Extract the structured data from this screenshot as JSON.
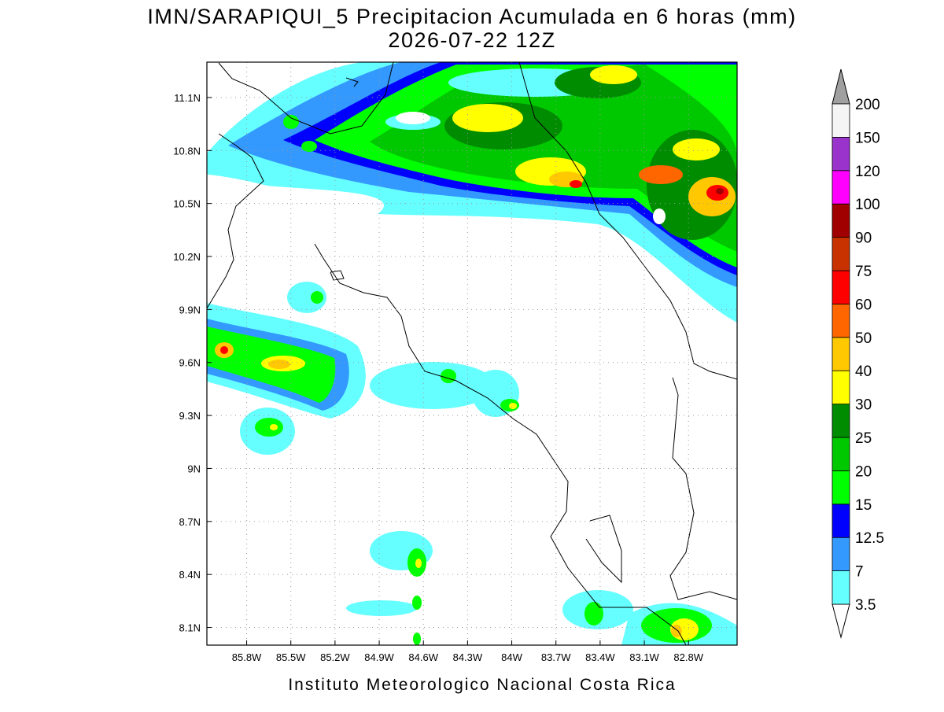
{
  "header": {
    "title": "IMN/SARAPIQUI_5 Precipitacion Acumulada en 6 horas (mm)",
    "subtitle": "2026-07-22 12Z"
  },
  "map": {
    "xlim": [
      -86.07,
      -82.47
    ],
    "ylim": [
      8.0,
      11.3
    ],
    "xticks": [
      {
        "value": -85.8,
        "label": "85.8W"
      },
      {
        "value": -85.5,
        "label": "85.5W"
      },
      {
        "value": -85.2,
        "label": "85.2W"
      },
      {
        "value": -84.9,
        "label": "84.9W"
      },
      {
        "value": -84.6,
        "label": "84.6W"
      },
      {
        "value": -84.3,
        "label": "84.3W"
      },
      {
        "value": -84.0,
        "label": "84W"
      },
      {
        "value": -83.7,
        "label": "83.7W"
      },
      {
        "value": -83.4,
        "label": "83.4W"
      },
      {
        "value": -83.1,
        "label": "83.1W"
      },
      {
        "value": -82.8,
        "label": "82.8W"
      }
    ],
    "yticks": [
      {
        "value": 8.1,
        "label": "8.1N"
      },
      {
        "value": 8.4,
        "label": "8.4N"
      },
      {
        "value": 8.7,
        "label": "8.7N"
      },
      {
        "value": 9.0,
        "label": "9N"
      },
      {
        "value": 9.3,
        "label": "9.3N"
      },
      {
        "value": 9.6,
        "label": "9.6N"
      },
      {
        "value": 9.9,
        "label": "9.9N"
      },
      {
        "value": 10.2,
        "label": "10.2N"
      },
      {
        "value": 10.5,
        "label": "10.5N"
      },
      {
        "value": 10.8,
        "label": "10.8N"
      },
      {
        "value": 11.1,
        "label": "11.1N"
      }
    ],
    "grid": true,
    "colorbar": {
      "levels": [
        3.5,
        7,
        12.5,
        15,
        20,
        25,
        30,
        40,
        50,
        60,
        75,
        90,
        100,
        120,
        150,
        200
      ],
      "colors": [
        "#66ffff",
        "#3399ff",
        "#0000ff",
        "#00ff00",
        "#00c800",
        "#008c00",
        "#ffff00",
        "#ffc800",
        "#ff6600",
        "#ff0000",
        "#c83200",
        "#a00000",
        "#ff00ff",
        "#9933cc",
        "#f5f5f5"
      ],
      "under_color": "#ffffff",
      "over_color": "#a0a0a0"
    }
  },
  "footer": "Instituto Meteorologico Nacional Costa Rica"
}
